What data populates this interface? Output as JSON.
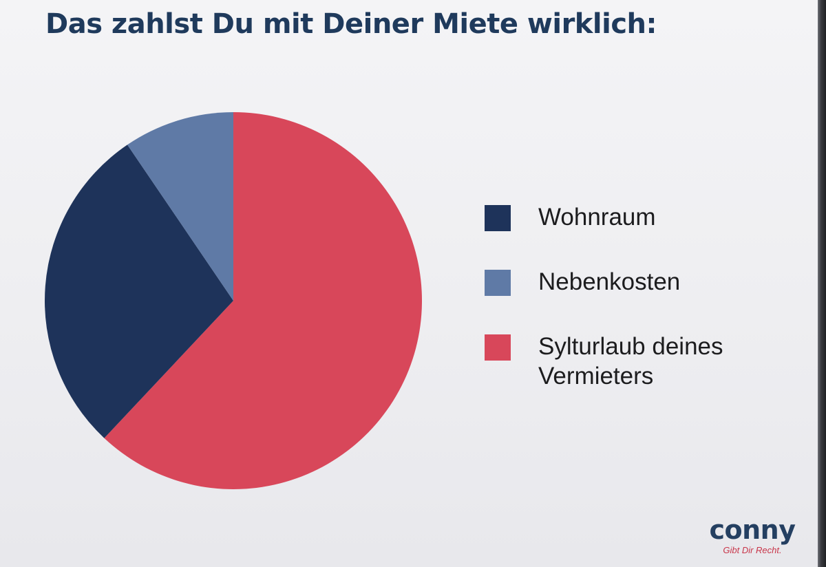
{
  "chart_data": {
    "type": "pie",
    "title": "Das zahlst Du mit Deiner Miete wirklich:",
    "slices": [
      {
        "label": "Wohnraum",
        "value": 28.5,
        "color": "#1e335a"
      },
      {
        "label": "Nebenkosten",
        "value": 9.5,
        "color": "#5f7aa6"
      },
      {
        "label": "Sylturlaub deines Vermieters",
        "value": 62.0,
        "color": "#d8475a"
      }
    ],
    "legend_position": "right"
  },
  "brand": {
    "name": "conny",
    "tagline": "Gibt Dir Recht."
  }
}
